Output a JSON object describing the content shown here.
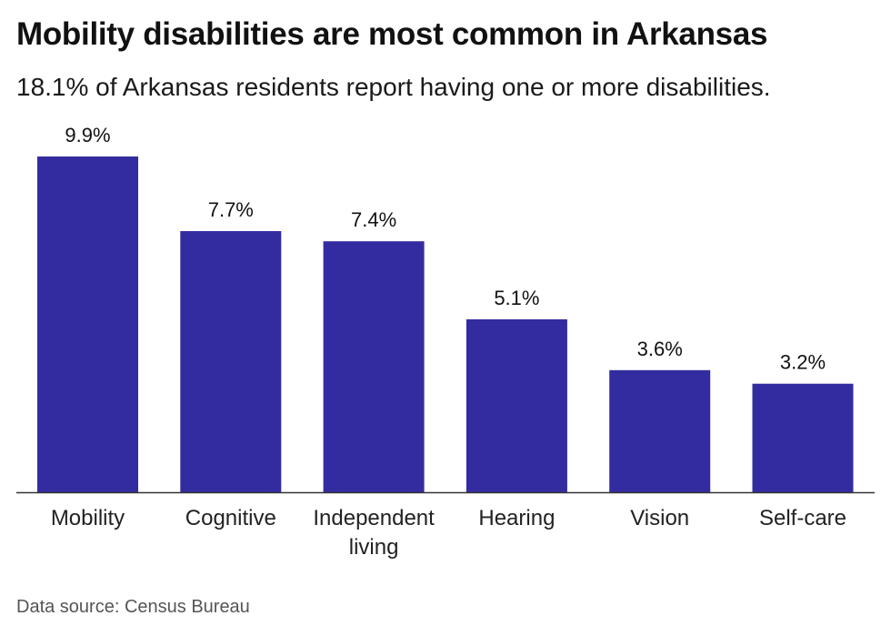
{
  "title": "Mobility disabilities are most common in Arkansas",
  "subtitle": "18.1% of Arkansas residents report having one or more disabilities.",
  "source": "Data source: Census Bureau",
  "colors": {
    "bar": "#332ca0",
    "axis": "#333333",
    "text": "#111111"
  },
  "chart_data": {
    "type": "bar",
    "title": "Mobility disabilities are most common in Arkansas",
    "subtitle": "18.1% of Arkansas residents report having one or more disabilities.",
    "categories": [
      "Mobility",
      "Cognitive",
      "Independent living",
      "Hearing",
      "Vision",
      "Self-care"
    ],
    "category_label_lines": [
      [
        "Mobility"
      ],
      [
        "Cognitive"
      ],
      [
        "Independent",
        "living"
      ],
      [
        "Hearing"
      ],
      [
        "Vision"
      ],
      [
        "Self-care"
      ]
    ],
    "values": [
      9.9,
      7.7,
      7.4,
      5.1,
      3.6,
      3.2
    ],
    "data_labels": [
      "9.9%",
      "7.7%",
      "7.4%",
      "5.1%",
      "3.6%",
      "3.2%"
    ],
    "unit": "%",
    "xlabel": "",
    "ylabel": "",
    "ylim": [
      0,
      9.9
    ],
    "grid": false,
    "legend": "none"
  }
}
